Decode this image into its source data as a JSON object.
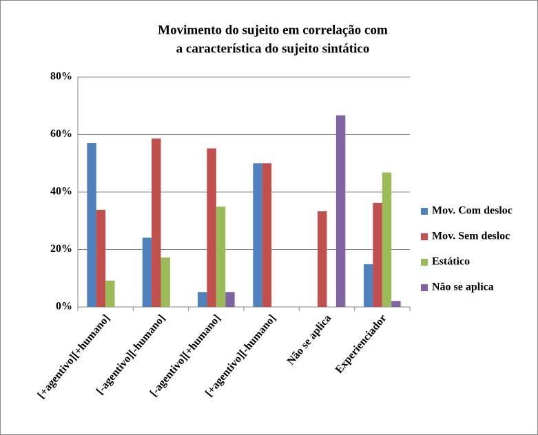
{
  "chart_data": {
    "type": "bar",
    "title": [
      "Movimento do sujeito em correlação com",
      "a característica do sujeito sintático"
    ],
    "categories": [
      "[+agentivo][+humano]",
      "[-agentivo][-humano]",
      "[-agentivo][+humano]",
      "[+agentivo][-humano]",
      "Não se aplica",
      "Experienciador"
    ],
    "series": [
      {
        "name": "Mov. Com desloc",
        "color": "#4f81bd",
        "values": [
          57,
          24.1,
          5.2,
          50,
          0,
          14.9
        ]
      },
      {
        "name": "Mov. Sem desloc",
        "color": "#c0504d",
        "values": [
          33.8,
          58.6,
          55.2,
          50,
          33.3,
          36.2
        ]
      },
      {
        "name": "Estático",
        "color": "#9bbb59",
        "values": [
          9.2,
          17.2,
          34.9,
          0,
          0,
          46.8
        ]
      },
      {
        "name": "Não se aplica",
        "color": "#8064a2",
        "values": [
          0,
          0,
          5.2,
          0,
          66.7,
          2.1
        ]
      }
    ],
    "ylim": [
      0,
      80
    ],
    "yticks": [
      {
        "value": 0,
        "label": "0%"
      },
      {
        "value": 20,
        "label": "20%"
      },
      {
        "value": 40,
        "label": "40%"
      },
      {
        "value": 60,
        "label": "60%"
      },
      {
        "value": 80,
        "label": "80%"
      }
    ],
    "grid": true,
    "legend": "right"
  }
}
